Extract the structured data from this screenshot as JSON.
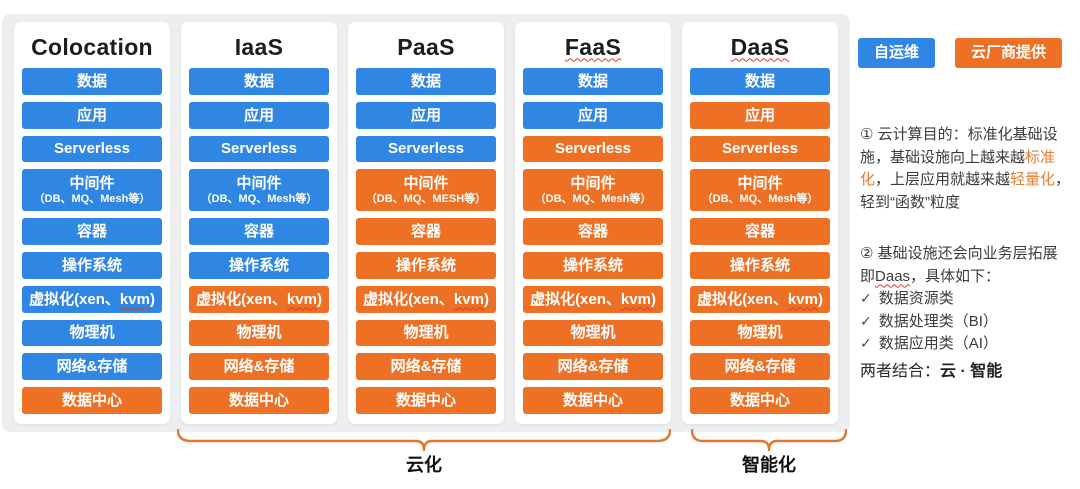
{
  "colors": {
    "blue": "#2f87e3",
    "orange": "#ed7024",
    "highlight": "#ed7d2e",
    "squiggle": "#e23b2c",
    "brace": "#e2762f"
  },
  "legend": {
    "items": [
      {
        "id": "self-ops",
        "label": "自运维",
        "color": "blue"
      },
      {
        "id": "vendor",
        "label": "云厂商提供",
        "color": "orange"
      }
    ]
  },
  "columns": [
    {
      "title": "Colocation",
      "title_squiggle": false,
      "bars": [
        {
          "id": "data",
          "text": "数据",
          "color": "blue"
        },
        {
          "id": "app",
          "text": "应用",
          "color": "blue"
        },
        {
          "id": "serverless",
          "text": "Serverless",
          "color": "blue"
        },
        {
          "id": "middleware",
          "text": "中间件",
          "sub": "（DB、MQ、Mesh等）",
          "color": "blue"
        },
        {
          "id": "container",
          "text": "容器",
          "color": "blue"
        },
        {
          "id": "os",
          "text": "操作系统",
          "color": "blue"
        },
        {
          "id": "virtualization",
          "pre": "虚拟化(xen、",
          "squiggle": "kvm",
          "post": ")",
          "color": "blue"
        },
        {
          "id": "physical-machine",
          "text": "物理机",
          "color": "blue"
        },
        {
          "id": "network-storage",
          "text": "网络&存储",
          "color": "blue"
        },
        {
          "id": "datacenter",
          "text": "数据中心",
          "color": "orange"
        }
      ]
    },
    {
      "title": "IaaS",
      "title_squiggle": false,
      "bars": [
        {
          "id": "data",
          "text": "数据",
          "color": "blue"
        },
        {
          "id": "app",
          "text": "应用",
          "color": "blue"
        },
        {
          "id": "serverless",
          "text": "Serverless",
          "color": "blue"
        },
        {
          "id": "middleware",
          "text": "中间件",
          "sub": "（DB、MQ、Mesh等）",
          "color": "blue"
        },
        {
          "id": "container",
          "text": "容器",
          "color": "blue"
        },
        {
          "id": "os",
          "text": "操作系统",
          "color": "blue"
        },
        {
          "id": "virtualization",
          "pre": "虚拟化(xen、",
          "squiggle": "kvm",
          "post": ")",
          "color": "orange"
        },
        {
          "id": "physical-machine",
          "text": "物理机",
          "color": "orange"
        },
        {
          "id": "network-storage",
          "text": "网络&存储",
          "color": "orange"
        },
        {
          "id": "datacenter",
          "text": "数据中心",
          "color": "orange"
        }
      ]
    },
    {
      "title": "PaaS",
      "title_squiggle": false,
      "bars": [
        {
          "id": "data",
          "text": "数据",
          "color": "blue"
        },
        {
          "id": "app",
          "text": "应用",
          "color": "blue"
        },
        {
          "id": "serverless",
          "text": "Serverless",
          "color": "blue"
        },
        {
          "id": "middleware",
          "text": "中间件",
          "sub": "（DB、MQ、MESH等）",
          "color": "orange"
        },
        {
          "id": "container",
          "text": "容器",
          "color": "orange"
        },
        {
          "id": "os",
          "text": "操作系统",
          "color": "orange"
        },
        {
          "id": "virtualization",
          "pre": "虚拟化(xen、",
          "squiggle": "kvm",
          "post": ")",
          "color": "orange"
        },
        {
          "id": "physical-machine",
          "text": "物理机",
          "color": "orange"
        },
        {
          "id": "network-storage",
          "text": "网络&存储",
          "color": "orange"
        },
        {
          "id": "datacenter",
          "text": "数据中心",
          "color": "orange"
        }
      ]
    },
    {
      "title": "FaaS",
      "title_squiggle": true,
      "bars": [
        {
          "id": "data",
          "text": "数据",
          "color": "blue"
        },
        {
          "id": "app",
          "text": "应用",
          "color": "blue"
        },
        {
          "id": "serverless",
          "text": "Serverless",
          "color": "orange"
        },
        {
          "id": "middleware",
          "text": "中间件",
          "sub": "（DB、MQ、Mesh等）",
          "color": "orange"
        },
        {
          "id": "container",
          "text": "容器",
          "color": "orange"
        },
        {
          "id": "os",
          "text": "操作系统",
          "color": "orange"
        },
        {
          "id": "virtualization",
          "pre": "虚拟化(xen、",
          "squiggle": "kvm",
          "post": ")",
          "color": "orange"
        },
        {
          "id": "physical-machine",
          "text": "物理机",
          "color": "orange"
        },
        {
          "id": "network-storage",
          "text": "网络&存储",
          "color": "orange"
        },
        {
          "id": "datacenter",
          "text": "数据中心",
          "color": "orange"
        }
      ]
    },
    {
      "title": "DaaS",
      "title_squiggle": true,
      "bars": [
        {
          "id": "data",
          "text": "数据",
          "color": "blue"
        },
        {
          "id": "app",
          "text": "应用",
          "color": "orange"
        },
        {
          "id": "serverless",
          "text": "Serverless",
          "color": "orange"
        },
        {
          "id": "middleware",
          "text": "中间件",
          "sub": "（DB、MQ、Mesh等）",
          "color": "orange"
        },
        {
          "id": "container",
          "text": "容器",
          "color": "orange"
        },
        {
          "id": "os",
          "text": "操作系统",
          "color": "orange"
        },
        {
          "id": "virtualization",
          "pre": "虚拟化(xen、",
          "squiggle": "kvm",
          "post": ")",
          "color": "orange"
        },
        {
          "id": "physical-machine",
          "text": "物理机",
          "color": "orange"
        },
        {
          "id": "network-storage",
          "text": "网络&存储",
          "color": "orange"
        },
        {
          "id": "datacenter",
          "text": "数据中心",
          "color": "orange"
        }
      ]
    }
  ],
  "notes": {
    "note1": {
      "segments": [
        {
          "t": "① 云计算目的：标准化基础设施，基础设施向上越来越"
        },
        {
          "t": "标准化",
          "c": "orange"
        },
        {
          "t": "，上层应用就越来越"
        },
        {
          "t": "轻量化",
          "c": "orange"
        },
        {
          "t": "，轻到“函数”粒度"
        }
      ]
    },
    "note2": {
      "segments": [
        {
          "t": "② 基础设施还会向业务层拓展即"
        },
        {
          "t": "Daas",
          "squiggle": true
        },
        {
          "t": "，具体如下："
        }
      ],
      "checklist": [
        {
          "mark": "✓",
          "text": "数据资源类"
        },
        {
          "mark": "✓",
          "text": "数据处理类（BI）"
        },
        {
          "mark": "✓",
          "text": "数据应用类（AI）"
        }
      ]
    },
    "conclusion": {
      "segments": [
        {
          "t": "两者结合："
        },
        {
          "t": "云 · 智能",
          "b": true
        }
      ]
    }
  },
  "braces": [
    {
      "id": "cloudization",
      "label": "云化"
    },
    {
      "id": "intelligence",
      "label": "智能化"
    }
  ]
}
